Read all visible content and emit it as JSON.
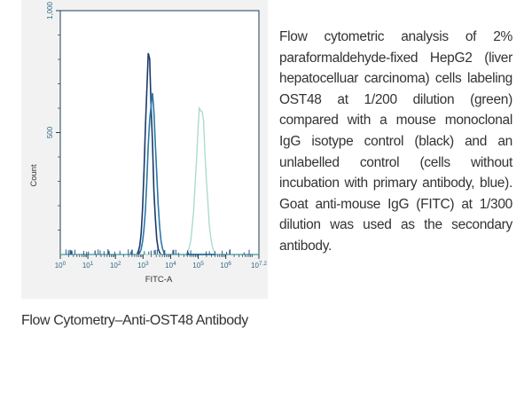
{
  "chart_data": {
    "type": "line",
    "title": "",
    "xlabel": "FITC-A",
    "ylabel": "Count",
    "x_scale": "log",
    "xlim": [
      1,
      15848932
    ],
    "ylim": [
      0,
      1000
    ],
    "x_ticks": [
      {
        "base": "10",
        "exp": "0",
        "value": 1
      },
      {
        "base": "10",
        "exp": "1",
        "value": 10
      },
      {
        "base": "10",
        "exp": "2",
        "value": 100
      },
      {
        "base": "10",
        "exp": "3",
        "value": 1000
      },
      {
        "base": "10",
        "exp": "4",
        "value": 10000
      },
      {
        "base": "10",
        "exp": "5",
        "value": 100000
      },
      {
        "base": "10",
        "exp": "6",
        "value": 1000000
      },
      {
        "base": "10",
        "exp": "7.2",
        "value": 15848932
      }
    ],
    "y_ticks": [
      {
        "label": "500",
        "value": 500
      },
      {
        "label": "1,000",
        "value": 1000
      }
    ],
    "legend": "none",
    "grid": false,
    "series": [
      {
        "color": "#1c3a6b",
        "peak_x": 1600,
        "peak_y": 790,
        "spread_decades": 0.13
      },
      {
        "color": "#2a7aa8",
        "peak_x": 2100,
        "peak_y": 650,
        "spread_decades": 0.15
      },
      {
        "color": "#a6d9cb",
        "peak_x": 125000,
        "peak_y": 620,
        "spread_decades": 0.17
      }
    ]
  },
  "caption": "Flow Cytometry–Anti-OST48 Antibody",
  "description": "Flow cytometric analysis of 2% paraformaldehyde-fixed HepG2 (liver hepatocelluar carcinoma) cells labeling OST48 at 1/200 dilution (green) compared with a mouse monoclonal IgG isotype control (black) and an unlabelled control (cells without incubation with primary antibody, blue). Goat anti-mouse IgG (FITC) at 1/300 dilution was used as the secondary antibody."
}
